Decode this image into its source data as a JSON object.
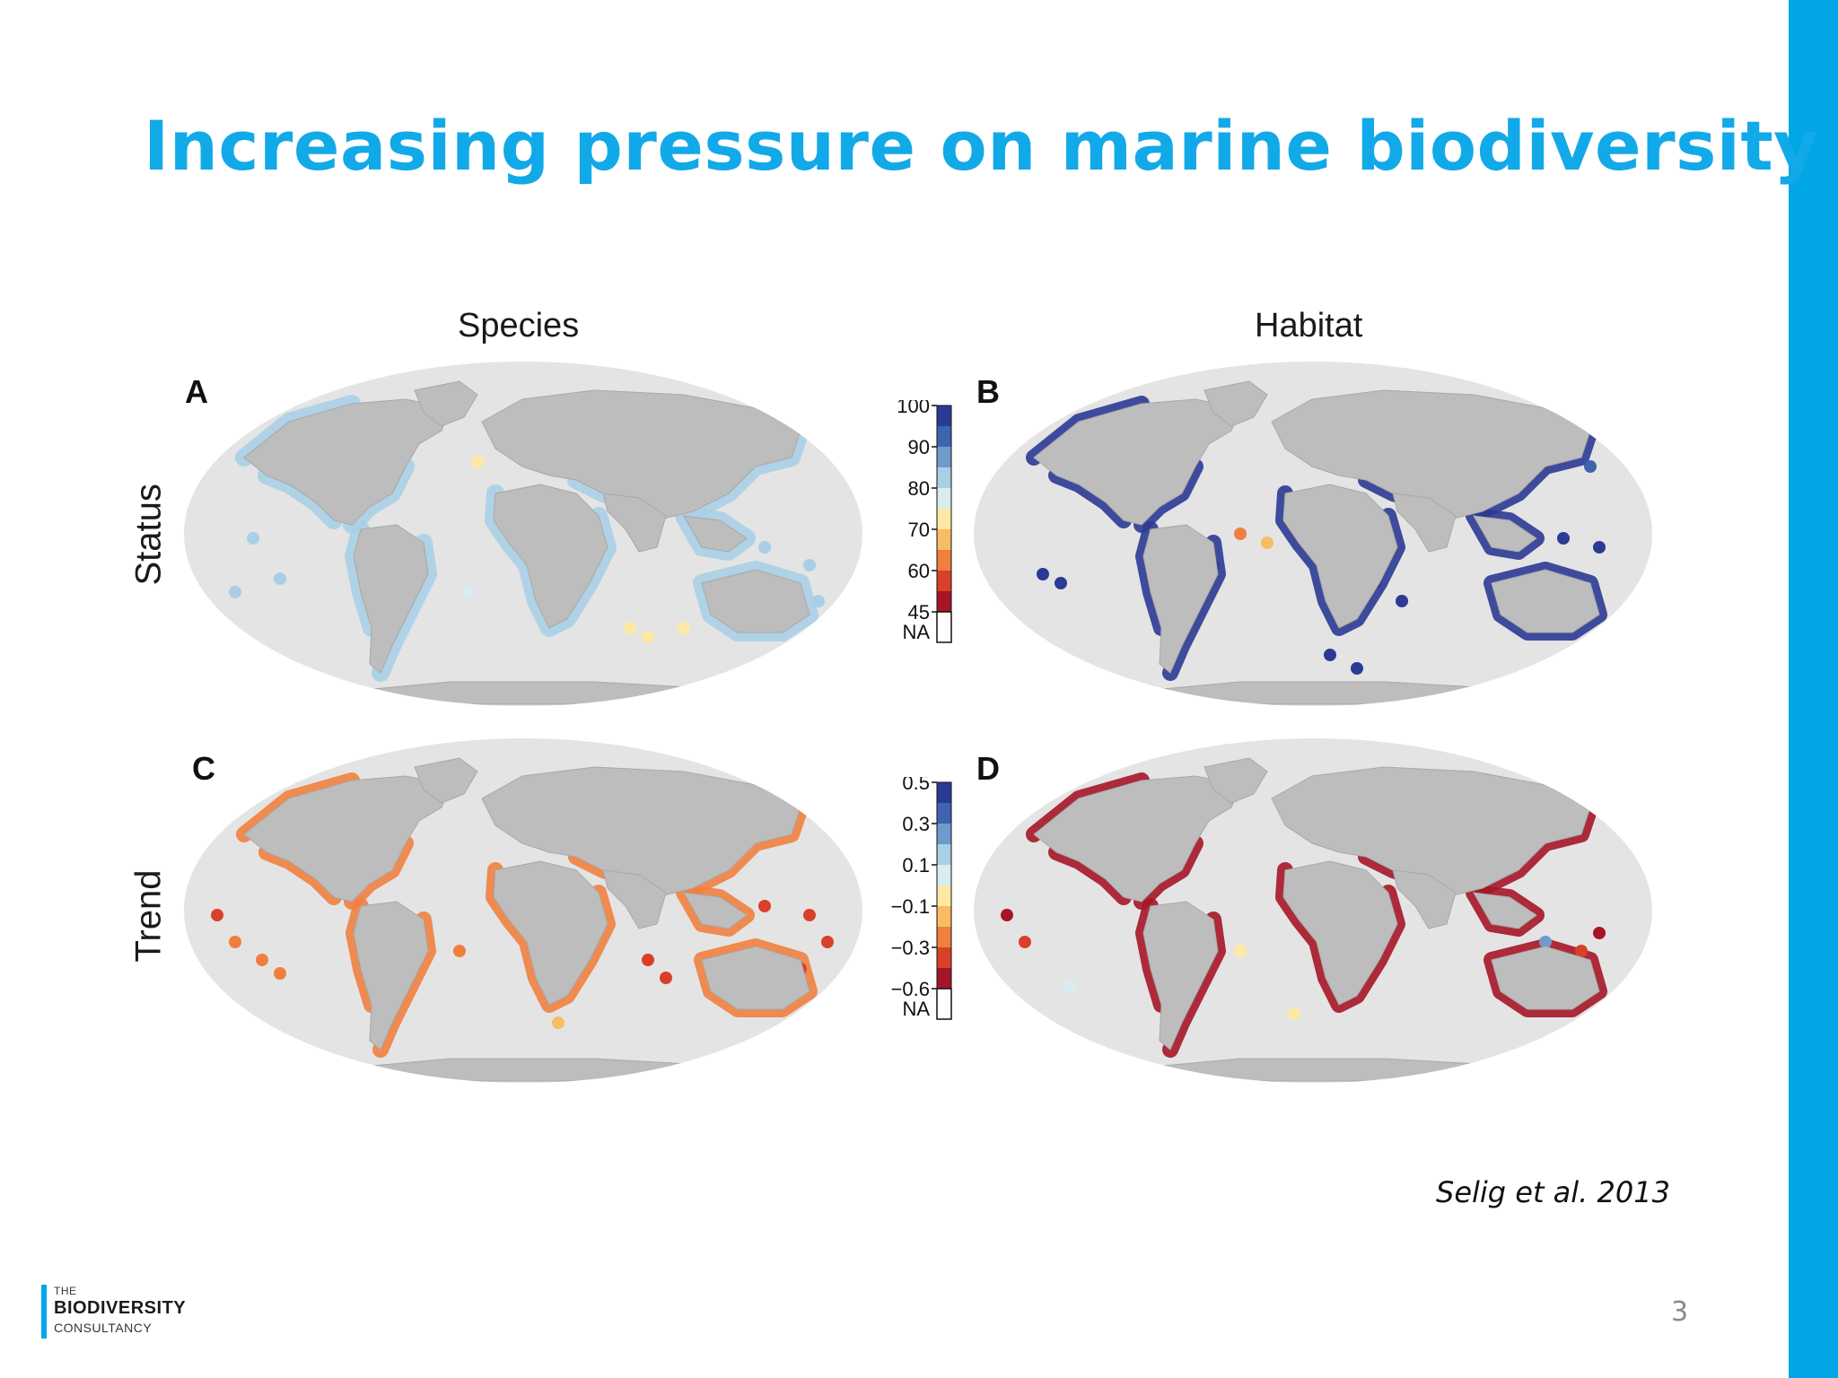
{
  "slide": {
    "title": "Increasing pressure on marine biodiversity",
    "citation": "Selig et al. 2013",
    "page_number": "3",
    "accent_color": "#00a6e6",
    "title_color": "#12a9e8"
  },
  "logo": {
    "line1": "THE",
    "line2": "BIODIVERSITY",
    "line3": "CONSULTANCY"
  },
  "figure": {
    "columns": [
      "Species",
      "Habitat"
    ],
    "rows": [
      "Status",
      "Trend"
    ],
    "panels": [
      {
        "letter": "A",
        "column": "Species",
        "row": "Status"
      },
      {
        "letter": "B",
        "column": "Habitat",
        "row": "Status"
      },
      {
        "letter": "C",
        "column": "Species",
        "row": "Trend"
      },
      {
        "letter": "D",
        "column": "Habitat",
        "row": "Trend"
      }
    ],
    "status_legend": {
      "ticks": [
        "100",
        "90",
        "80",
        "70",
        "60",
        "45",
        "NA"
      ],
      "colors": [
        "#2b3a94",
        "#3f63ae",
        "#6f9acb",
        "#a9cfe6",
        "#d9ecf2",
        "#fde9a4",
        "#f8bd63",
        "#ef7f3f",
        "#d9402a",
        "#a51526",
        "#ffffff"
      ]
    },
    "trend_legend": {
      "ticks": [
        "0.5",
        "0.3",
        "0.1",
        "−0.1",
        "−0.3",
        "−0.6",
        "NA"
      ],
      "colors": [
        "#2b3a94",
        "#3f63ae",
        "#6f9acb",
        "#a9cfe6",
        "#d9ecf2",
        "#fde9a4",
        "#f8bd63",
        "#ef7f3f",
        "#d9402a",
        "#a51526",
        "#ffffff"
      ]
    },
    "ocean_color": "#e4e4e4",
    "land_color": "#bdbdbd"
  }
}
